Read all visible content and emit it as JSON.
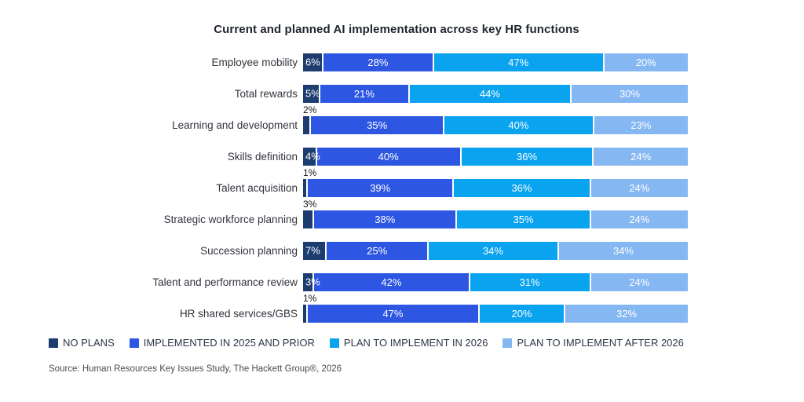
{
  "title": "Current and planned AI implementation across key HR functions",
  "source": "Source: Human Resources Key Issues Study, The Hackett Group®, 2026",
  "colors": {
    "no_plans": "#1d3c6f",
    "implemented_2025_prior": "#2d56e2",
    "plan_2026": "#0aa3ef",
    "plan_after_2026": "#85b7f3",
    "background": "#ffffff",
    "outside_label_text": "#141414",
    "inside_label_text": "#ffffff"
  },
  "legend": [
    {
      "label": "NO PLANS",
      "color": "#1d3c6f"
    },
    {
      "label": "IMPLEMENTED IN 2025 AND PRIOR",
      "color": "#2d56e2"
    },
    {
      "label": "PLAN TO IMPLEMENT IN 2026",
      "color": "#0aa3ef"
    },
    {
      "label": "PLAN TO IMPLEMENT AFTER 2026",
      "color": "#85b7f3"
    }
  ],
  "chart_data": {
    "type": "bar",
    "orientation": "horizontal",
    "stacked": true,
    "value_suffix": "%",
    "xlim": [
      0,
      100
    ],
    "grid": false,
    "legend_position": "bottom",
    "categories": [
      "Employee mobility",
      "Total rewards",
      "Learning and development",
      "Skills definition",
      "Talent acquisition",
      "Strategic workforce planning",
      "Succession planning",
      "Talent and performance review",
      "HR shared services/GBS"
    ],
    "series": [
      {
        "name": "NO PLANS",
        "key": "no-plans",
        "color": "#1d3c6f",
        "values": [
          6,
          5,
          2,
          4,
          1,
          3,
          7,
          3,
          1
        ]
      },
      {
        "name": "IMPLEMENTED IN 2025 AND PRIOR",
        "key": "implemented-2025-prior",
        "color": "#2d56e2",
        "values": [
          28,
          21,
          35,
          40,
          39,
          38,
          25,
          42,
          47
        ]
      },
      {
        "name": "PLAN TO IMPLEMENT IN 2026",
        "key": "plan-2026",
        "color": "#0aa3ef",
        "values": [
          47,
          44,
          40,
          36,
          36,
          35,
          34,
          31,
          20
        ]
      },
      {
        "name": "PLAN TO IMPLEMENT AFTER 2026",
        "key": "plan-after-2026",
        "color": "#85b7f3",
        "values": [
          20,
          30,
          23,
          24,
          24,
          24,
          34,
          24,
          32
        ]
      }
    ],
    "outside_label_rows": [
      2,
      4,
      5,
      8
    ]
  }
}
